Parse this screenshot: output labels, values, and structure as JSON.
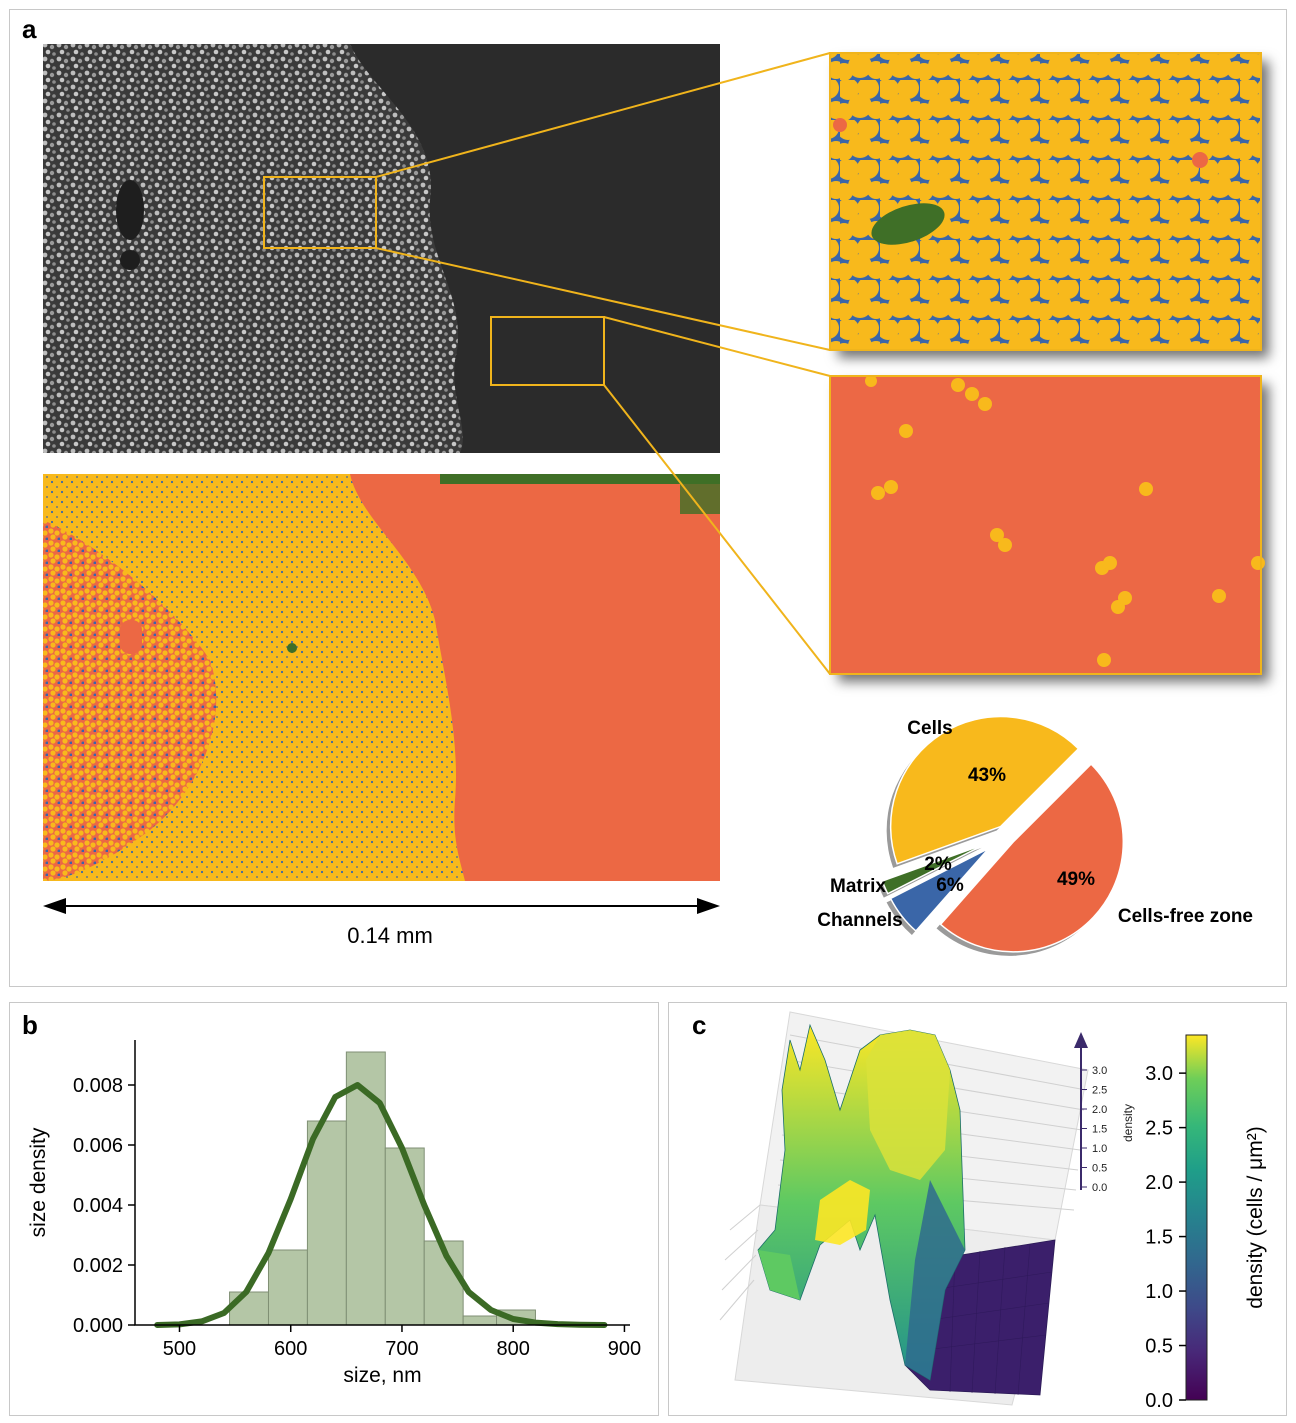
{
  "panels": {
    "a": "a",
    "b": "b",
    "c": "c"
  },
  "scale_bar": {
    "label": "0.14 mm"
  },
  "colors": {
    "cells": "#f8b91c",
    "cells_free_zone": "#ec6844",
    "channels": "#3a66a8",
    "matrix": "#3f6f27",
    "sem_background": "#2e2e2e",
    "highlight_box": "#f0b41c",
    "histogram_fill": "#b4c6a6",
    "kde_line": "#3b6a25"
  },
  "chart_data": [
    {
      "type": "pie",
      "labels": [
        "Cells",
        "Cells-free zone",
        "Channels",
        "Matrix"
      ],
      "values": [
        43,
        49,
        6,
        2
      ],
      "value_labels": [
        "43%",
        "49%",
        "6%",
        "2%"
      ],
      "colors": [
        "#f8b91c",
        "#ec6844",
        "#3a66a8",
        "#3f6f27"
      ],
      "exploded": true
    },
    {
      "type": "bar",
      "subtype": "histogram",
      "bin_edges": [
        545,
        580,
        615,
        650,
        685,
        720,
        755,
        785,
        820
      ],
      "values": [
        0.0011,
        0.0025,
        0.0068,
        0.0091,
        0.0059,
        0.0028,
        0.0003,
        0.0005
      ],
      "kde": {
        "x": [
          480,
          500,
          520,
          540,
          560,
          580,
          600,
          620,
          640,
          660,
          680,
          700,
          720,
          740,
          760,
          780,
          800,
          820,
          840,
          860,
          882
        ],
        "y": [
          0.0,
          2e-05,
          0.00012,
          0.0004,
          0.0011,
          0.0024,
          0.0042,
          0.0062,
          0.0076,
          0.008,
          0.0074,
          0.0059,
          0.004,
          0.0023,
          0.0011,
          0.0005,
          0.0002,
          8e-05,
          3e-05,
          1e-05,
          0.0
        ]
      },
      "xlabel": "size, nm",
      "ylabel": "size density",
      "xlim": [
        460,
        905
      ],
      "ylim": [
        0,
        0.0095
      ],
      "xticks": [
        "500",
        "600",
        "700",
        "800",
        "900"
      ],
      "xtick_values": [
        500,
        600,
        700,
        800,
        900
      ],
      "yticks": [
        "0.000",
        "0.002",
        "0.004",
        "0.006",
        "0.008"
      ],
      "ytick_values": [
        0,
        0.002,
        0.004,
        0.006,
        0.008
      ],
      "grid": false
    },
    {
      "type": "surface",
      "zlabel": "density",
      "zticks": [
        "0.0",
        "0.5",
        "1.0",
        "1.5",
        "2.0",
        "2.5",
        "3.0"
      ],
      "zrange": [
        0,
        3.3
      ],
      "colormap": "viridis",
      "colorbar": {
        "label": "density (cells / μm²)",
        "ticks": [
          "0.0",
          "0.5",
          "1.0",
          "1.5",
          "2.0",
          "2.5",
          "3.0"
        ],
        "tick_values": [
          0,
          0.5,
          1.0,
          1.5,
          2.0,
          2.5,
          3.0
        ],
        "range": [
          0,
          3.35
        ]
      }
    }
  ]
}
